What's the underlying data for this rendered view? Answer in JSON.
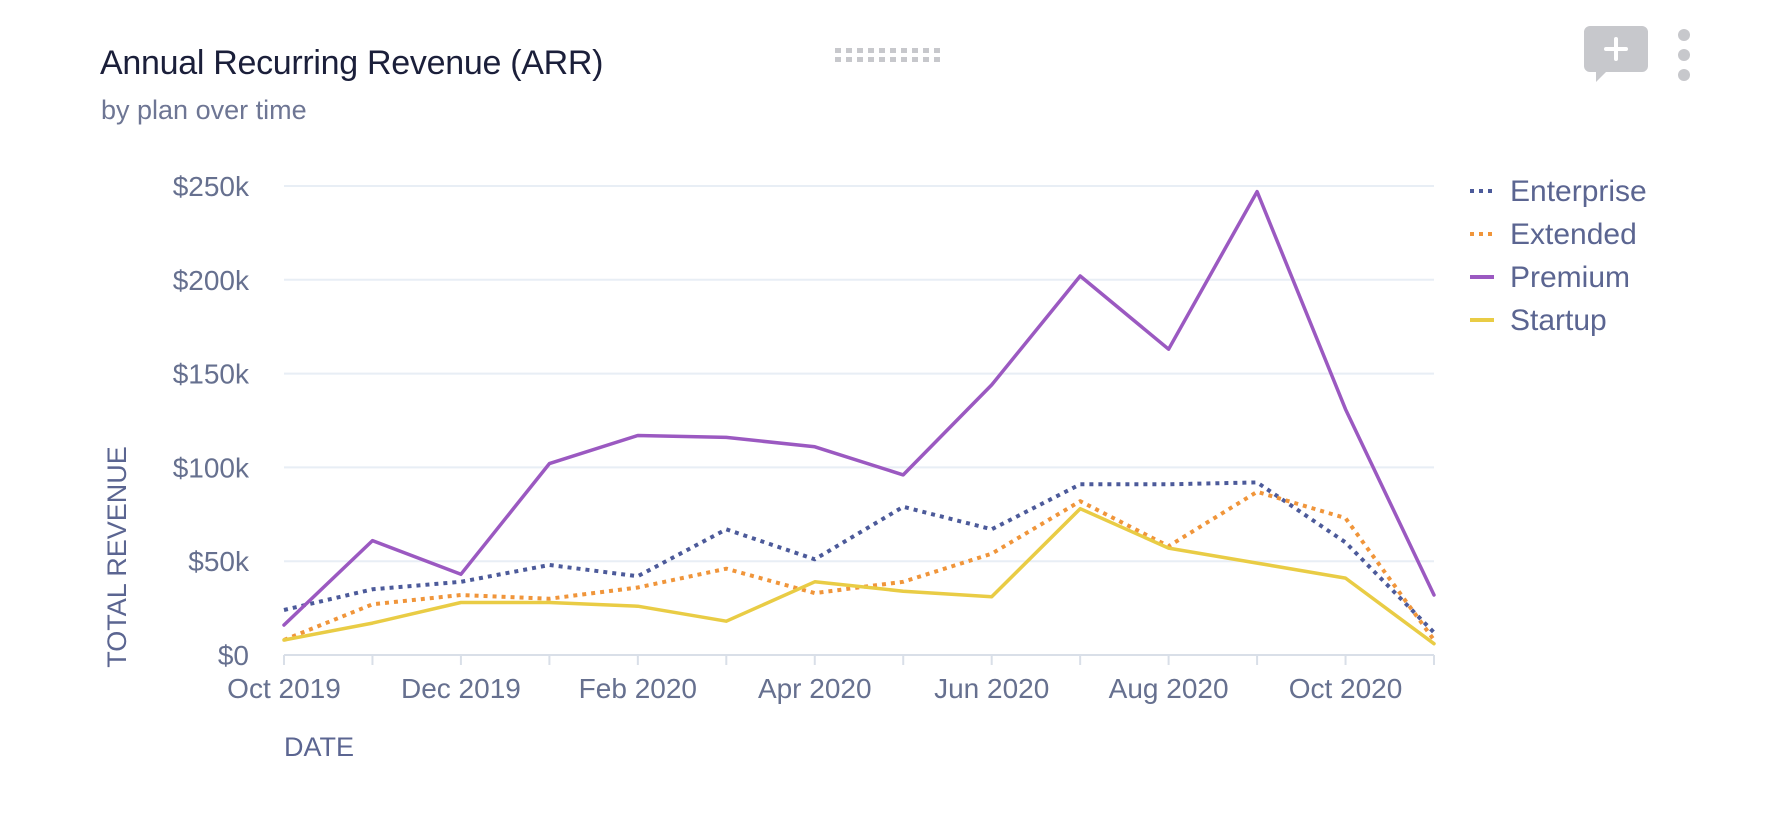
{
  "card": {
    "title": "Annual Recurring Revenue (ARR)",
    "subtitle": "by plan over time"
  },
  "icons": {
    "drag": "drag-handle-icon",
    "comment": "add-comment-icon",
    "more": "more-vertical-icon"
  },
  "colors": {
    "Enterprise": "#4c5a9a",
    "Extended": "#f0953a",
    "Premium": "#9b59c1",
    "Startup": "#e9cc45",
    "grid": "#e8eef5",
    "tick": "#66708f",
    "icon_gray": "#c7c8cc"
  },
  "chart_data": {
    "type": "line",
    "x": [
      "2019-10",
      "2019-11",
      "2019-12",
      "2020-01",
      "2020-02",
      "2020-03",
      "2020-04",
      "2020-05",
      "2020-06",
      "2020-07",
      "2020-08",
      "2020-09",
      "2020-10",
      "2020-11"
    ],
    "x_tick_labels": [
      {
        "at": "2019-10",
        "label": "Oct 2019"
      },
      {
        "at": "2019-12",
        "label": "Dec 2019"
      },
      {
        "at": "2020-02",
        "label": "Feb 2020"
      },
      {
        "at": "2020-04",
        "label": "Apr 2020"
      },
      {
        "at": "2020-06",
        "label": "Jun 2020"
      },
      {
        "at": "2020-08",
        "label": "Aug 2020"
      },
      {
        "at": "2020-10",
        "label": "Oct 2020"
      }
    ],
    "y_ticks": [
      {
        "value": 0,
        "label": "$0"
      },
      {
        "value": 50000,
        "label": "$50k"
      },
      {
        "value": 100000,
        "label": "$100k"
      },
      {
        "value": 150000,
        "label": "$150k"
      },
      {
        "value": 200000,
        "label": "$200k"
      },
      {
        "value": 250000,
        "label": "$250k"
      }
    ],
    "ylim": [
      0,
      250000
    ],
    "xlabel": "DATE",
    "ylabel": "TOTAL REVENUE",
    "grid": true,
    "legend_position": "right",
    "series": [
      {
        "name": "Enterprise",
        "style": "dotted",
        "values": [
          24000,
          35000,
          39000,
          48000,
          42000,
          67000,
          51000,
          79000,
          67000,
          91000,
          91000,
          92000,
          60000,
          12000
        ]
      },
      {
        "name": "Extended",
        "style": "dotted",
        "values": [
          8000,
          27000,
          32000,
          30000,
          36000,
          46000,
          33000,
          39000,
          54000,
          82000,
          58000,
          87000,
          73000,
          8000
        ]
      },
      {
        "name": "Premium",
        "style": "solid",
        "values": [
          16000,
          61000,
          43000,
          102000,
          117000,
          116000,
          111000,
          96000,
          144000,
          202000,
          163000,
          247000,
          131000,
          32000
        ]
      },
      {
        "name": "Startup",
        "style": "solid",
        "values": [
          8000,
          17000,
          28000,
          28000,
          26000,
          18000,
          39000,
          34000,
          31000,
          78000,
          57000,
          49000,
          41000,
          6000
        ]
      }
    ]
  }
}
